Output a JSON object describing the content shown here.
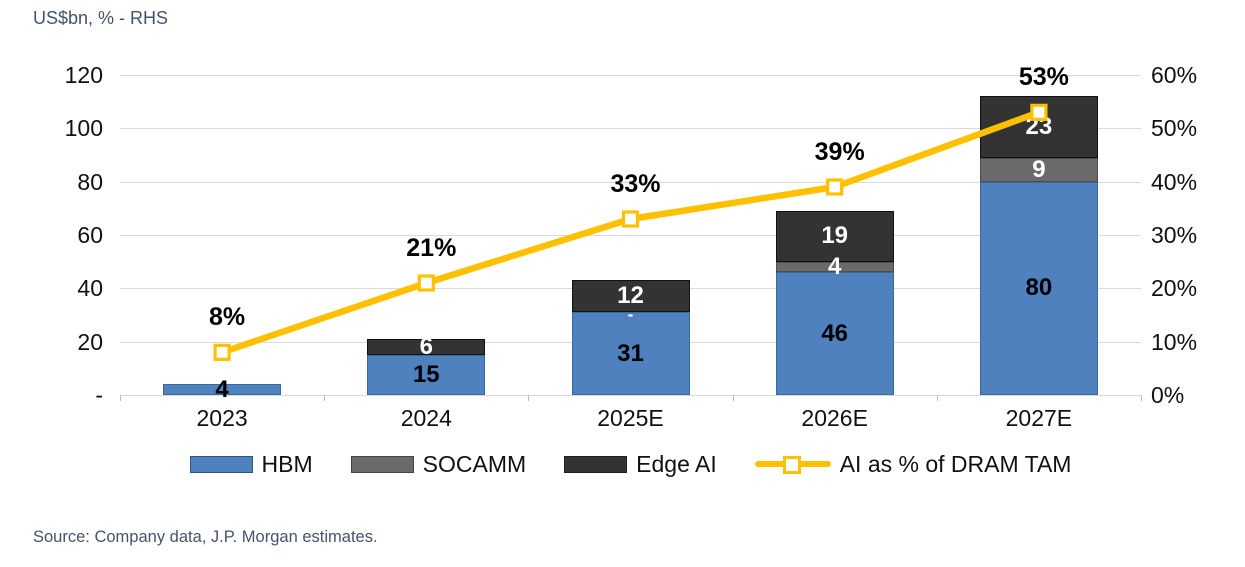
{
  "header": {
    "axis_note": "US$bn, % - RHS"
  },
  "source": "Source: Company data, J.P. Morgan estimates.",
  "colors": {
    "hbm": "#4E81BD",
    "hbm_border": "#36699E",
    "socamm": "#6A6A6A",
    "socamm_border": "#4D4D4D",
    "edge_ai": "#333333",
    "edge_ai_border": "#111111",
    "line": "#FFC000",
    "grid": "#D9D9D9",
    "note_text": "#44546A"
  },
  "chart_data": {
    "type": "bar",
    "subtype": "stacked-bars-with-percentage-line",
    "title": "US$bn, % - RHS",
    "categories": [
      "2023",
      "2024",
      "2025E",
      "2026E",
      "2027E"
    ],
    "series": [
      {
        "name": "HBM",
        "values": [
          4,
          15,
          31,
          46,
          80
        ],
        "labels": [
          "4",
          "15",
          "31",
          "46",
          "80"
        ],
        "color": "#4E81BD",
        "border": "#36699E",
        "label_color": "#000000"
      },
      {
        "name": "SOCAMM",
        "values": [
          0,
          0,
          0,
          4,
          9
        ],
        "labels": [
          "",
          "",
          "-",
          "4",
          "9"
        ],
        "color": "#6A6A6A",
        "border": "#4D4D4D",
        "label_color": "#FFFFFF"
      },
      {
        "name": "Edge AI",
        "values": [
          0,
          6,
          12,
          19,
          23
        ],
        "labels": [
          "",
          "6",
          "12",
          "19",
          "23"
        ],
        "color": "#333333",
        "border": "#111111",
        "label_color": "#FFFFFF"
      }
    ],
    "line": {
      "name": "AI as % of DRAM TAM",
      "axis": "right",
      "values": [
        8,
        21,
        33,
        39,
        53
      ],
      "labels": [
        "8%",
        "21%",
        "33%",
        "39%",
        "53%"
      ],
      "color": "#FFC000"
    },
    "left_axis": {
      "tick_labels": [
        "120",
        "100",
        "80",
        "60",
        "40",
        "20",
        "-"
      ],
      "tick_values": [
        120,
        100,
        80,
        60,
        40,
        20,
        0
      ],
      "min": 0,
      "max": 120
    },
    "right_axis": {
      "tick_labels": [
        "60%",
        "50%",
        "40%",
        "30%",
        "20%",
        "10%",
        "0%"
      ],
      "tick_values": [
        60,
        50,
        40,
        30,
        20,
        10,
        0
      ],
      "min": 0,
      "max": 60
    },
    "grid": true,
    "legend_position": "bottom",
    "legend": [
      {
        "label": "HBM",
        "type": "swatch",
        "color": "#4E81BD"
      },
      {
        "label": "SOCAMM",
        "type": "swatch",
        "color": "#6A6A6A"
      },
      {
        "label": "Edge AI",
        "type": "swatch",
        "color": "#333333"
      },
      {
        "label": "AI as % of DRAM TAM",
        "type": "line",
        "color": "#FFC000"
      }
    ]
  }
}
